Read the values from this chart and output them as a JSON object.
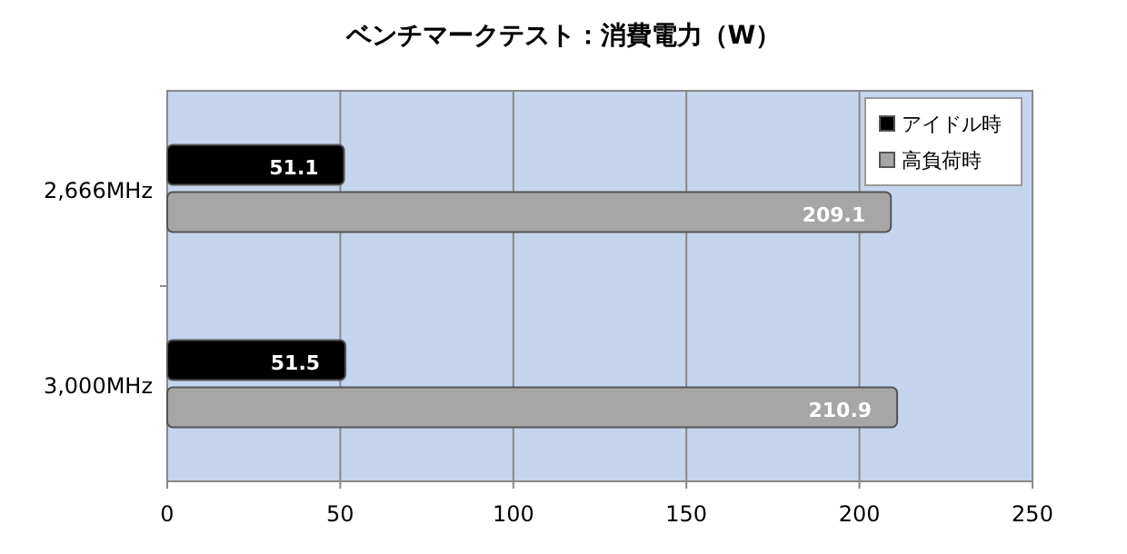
{
  "chart_data": {
    "type": "bar",
    "orientation": "horizontal",
    "title": "ベンチマークテスト：消費電力（W）",
    "categories": [
      "2,666MHz",
      "3,000MHz"
    ],
    "series": [
      {
        "name": "アイドル時",
        "color": "#000000",
        "values": [
          51.1,
          51.5
        ]
      },
      {
        "name": "高負荷時",
        "color": "#a6a6a6",
        "values": [
          209.1,
          210.9
        ]
      }
    ],
    "xlim": [
      0,
      250
    ],
    "xticks": [
      0,
      50,
      100,
      150,
      200,
      250
    ],
    "grid": "x",
    "legend": "top right",
    "data_labels": true
  }
}
